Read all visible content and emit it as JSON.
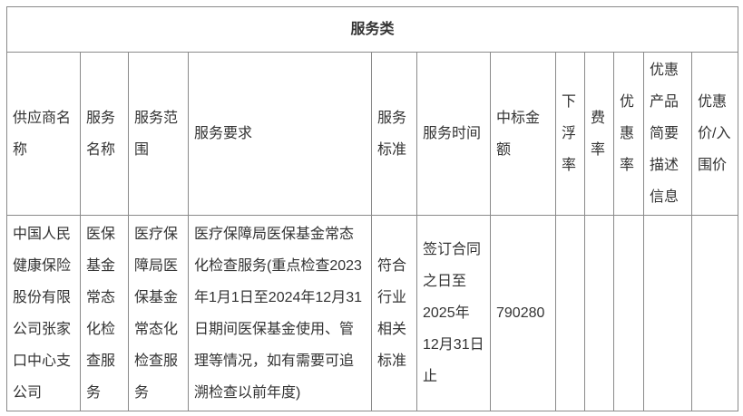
{
  "table": {
    "title": "服务类",
    "headers": [
      "供应商名称",
      "服务名称",
      "服务范围",
      "服务要求",
      "服务标准",
      "服务时间",
      "中标金额",
      "下浮率",
      "费率",
      "优惠率",
      "优惠产品简要描述信息",
      "优惠价/入围价"
    ],
    "row": {
      "supplier_name": "中国人民健康保险股份有限公司张家口中心支公司",
      "service_name": "医保基金常态化检查服务",
      "service_scope": "医疗保障局医保基金常态化检查服务",
      "service_requirements": "医疗保障局医保基金常态化检查服务(重点检查2023年1月1日至2024年12月31日期间医保基金使用、管理等情况，如有需要可追溯检查以前年度)",
      "service_standard": "符合行业相关标准",
      "service_time": "签订合同之日至2025年12月31日止",
      "winning_bid_amount": "790280",
      "discount_rate": "",
      "fee_rate": "",
      "preferential_rate": "",
      "preferential_product_description": "",
      "preferential_price": ""
    }
  },
  "colors": {
    "border": "#8a8a8a",
    "text": "#333333",
    "background": "#ffffff"
  }
}
